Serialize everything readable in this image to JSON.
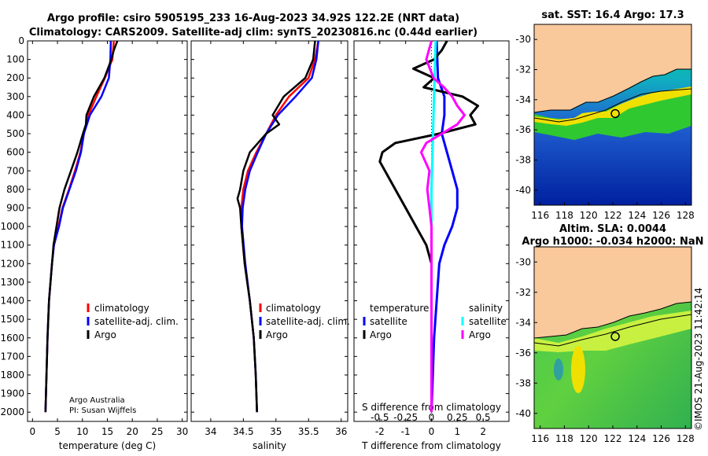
{
  "header": {
    "title_line1": "Argo profile: csiro 5905195_233 16-Aug-2023 34.92S 122.2E (NRT data)",
    "title_line2": "Climatology: CARS2009. Satellite-adj clim: synTS_20230816.nc (0.44d earlier)"
  },
  "credits": {
    "line1": "Argo Australia",
    "line2": "PI: Susan Wijffels"
  },
  "copyright": "©IMOS 21-Aug-2023 11:42:14",
  "colors": {
    "climatology": "#ff0000",
    "satellite": "#0000ff",
    "argo": "#000000",
    "sal_argo": "#ff00ff",
    "sal_sat": "#00ffff",
    "land": "#f9c89b"
  },
  "chart_data": [
    {
      "type": "line",
      "name": "temperature",
      "xlabel": "temperature (deg C)",
      "xlim": [
        -1,
        31
      ],
      "ylim": [
        2050,
        0
      ],
      "xticks": [
        0,
        5,
        10,
        15,
        20,
        25,
        30
      ],
      "yticks": [
        0,
        100,
        200,
        300,
        400,
        500,
        600,
        700,
        800,
        900,
        1000,
        1100,
        1200,
        1300,
        1400,
        1500,
        1600,
        1700,
        1800,
        1900,
        2000
      ],
      "legend": [
        "climatology",
        "satellite-adj. clim.",
        "Argo"
      ],
      "series": [
        {
          "name": "climatology",
          "depth": [
            0,
            100,
            200,
            300,
            400,
            500,
            600,
            700,
            800,
            900,
            1000,
            1100,
            1200,
            1400,
            1600,
            1800,
            2000
          ],
          "values": [
            16.3,
            16.0,
            14.5,
            12.8,
            11.2,
            10.3,
            9.6,
            8.5,
            7.3,
            6.0,
            5.2,
            4.3,
            3.9,
            3.3,
            3.0,
            2.8,
            2.6
          ]
        },
        {
          "name": "satellite-adj. clim.",
          "depth": [
            0,
            100,
            200,
            300,
            400,
            500,
            600,
            700,
            800,
            900,
            1000,
            1100,
            1200,
            1400,
            1600,
            1800,
            2000
          ],
          "values": [
            15.7,
            15.6,
            15.3,
            13.8,
            11.5,
            10.3,
            9.7,
            8.7,
            7.4,
            6.1,
            5.3,
            4.3,
            3.9,
            3.3,
            3.0,
            2.8,
            2.6
          ]
        },
        {
          "name": "Argo",
          "depth": [
            0,
            50,
            100,
            200,
            300,
            400,
            450,
            500,
            600,
            700,
            800,
            900,
            1000,
            1100,
            1200,
            1400,
            1600,
            1800,
            2000
          ],
          "values": [
            17.0,
            16.3,
            15.8,
            14.4,
            12.3,
            10.8,
            10.7,
            10.1,
            9.0,
            7.7,
            6.4,
            5.4,
            4.8,
            4.2,
            3.9,
            3.3,
            3.0,
            2.8,
            2.6
          ]
        }
      ]
    },
    {
      "type": "line",
      "name": "salinity",
      "xlabel": "salinity",
      "xlim": [
        33.7,
        36.1
      ],
      "ylim": [
        2050,
        0
      ],
      "xticks": [
        34,
        34.5,
        35,
        35.5,
        36
      ],
      "legend": [
        "climatology",
        "satellite-adj. clim.",
        "Argo"
      ],
      "series": [
        {
          "name": "climatology",
          "depth": [
            0,
            100,
            200,
            300,
            400,
            500,
            600,
            700,
            800,
            900,
            1000,
            1200,
            1400,
            1600,
            1800,
            2000
          ],
          "values": [
            35.65,
            35.6,
            35.5,
            35.2,
            35.0,
            34.85,
            34.7,
            34.57,
            34.5,
            34.47,
            34.47,
            34.52,
            34.6,
            34.66,
            34.69,
            34.71
          ]
        },
        {
          "name": "satellite-adj. clim.",
          "depth": [
            0,
            100,
            200,
            300,
            400,
            500,
            600,
            700,
            800,
            900,
            1000,
            1200,
            1400,
            1600,
            1800,
            2000
          ],
          "values": [
            35.65,
            35.62,
            35.55,
            35.3,
            35.03,
            34.85,
            34.72,
            34.6,
            34.53,
            34.49,
            34.48,
            34.53,
            34.6,
            34.66,
            34.69,
            34.71
          ]
        },
        {
          "name": "Argo",
          "depth": [
            0,
            100,
            200,
            300,
            400,
            450,
            500,
            600,
            700,
            800,
            850,
            900,
            1000,
            1200,
            1400,
            1600,
            1800,
            2000
          ],
          "values": [
            35.6,
            35.57,
            35.45,
            35.12,
            34.95,
            35.05,
            34.85,
            34.6,
            34.5,
            34.45,
            34.41,
            34.45,
            34.47,
            34.52,
            34.6,
            34.66,
            34.69,
            34.71
          ]
        }
      ]
    },
    {
      "type": "line",
      "name": "difference",
      "xlabel": "T difference from climatology",
      "x2label": "S difference from climatology",
      "xlim": [
        -3,
        3
      ],
      "ylim": [
        2050,
        0
      ],
      "xticks": [
        -2,
        -1,
        0,
        1,
        2
      ],
      "x2ticks_labels": [
        "-0.5",
        "-0.25",
        "0",
        "0.25",
        "0.5"
      ],
      "x2ticks": [
        -0.5,
        -0.25,
        0,
        0.25,
        0.5
      ],
      "legend_temp_title": "temperature",
      "legend_sal_title": "salinity",
      "legend": [
        "satellite",
        "Argo",
        "satellite",
        "Argo"
      ],
      "series": [
        {
          "name": "temperature satellite",
          "depth": [
            0,
            200,
            300,
            400,
            500,
            600,
            700,
            800,
            900,
            1000,
            1100,
            1200,
            1600,
            2000
          ],
          "values": [
            0.2,
            0.25,
            0.5,
            0.5,
            0.4,
            0.6,
            0.8,
            1.0,
            1.0,
            0.8,
            0.5,
            0.3,
            0.1,
            0.0
          ]
        },
        {
          "name": "temperature Argo",
          "depth": [
            0,
            50,
            100,
            150,
            200,
            250,
            300,
            350,
            400,
            450,
            500,
            550,
            600,
            650,
            700,
            800,
            900,
            1000,
            1100,
            1200,
            1400,
            1600,
            2000
          ],
          "values": [
            0.6,
            0.4,
            0.1,
            -0.7,
            0.1,
            -0.3,
            1.2,
            1.8,
            1.5,
            1.7,
            0.3,
            -1.4,
            -1.9,
            -2.0,
            -1.8,
            -1.4,
            -1.0,
            -0.6,
            -0.2,
            0.0,
            0.0,
            0.0,
            0.0
          ]
        },
        {
          "name": "salinity satellite",
          "depth": [
            0,
            200,
            400,
            600,
            800,
            1000,
            1200,
            1600,
            2000
          ],
          "values": [
            0.04,
            0.03,
            0.02,
            0.01,
            0.0,
            0.0,
            0.0,
            0.0,
            0.0
          ]
        },
        {
          "name": "salinity Argo",
          "depth": [
            0,
            100,
            200,
            250,
            300,
            350,
            400,
            450,
            500,
            550,
            600,
            700,
            800,
            900,
            1000,
            1200,
            1400,
            1600,
            2000
          ],
          "values": [
            0.0,
            -0.05,
            0.02,
            0.12,
            0.2,
            0.25,
            0.32,
            0.25,
            0.1,
            -0.05,
            -0.1,
            -0.02,
            -0.04,
            -0.02,
            0.0,
            0.0,
            0.0,
            0.0,
            0.0
          ]
        }
      ]
    },
    {
      "type": "heatmap",
      "name": "sst_map",
      "title": "sat. SST: 16.4 Argo: 17.3",
      "xticks": [
        116,
        118,
        120,
        122,
        124,
        126,
        128
      ],
      "yticks": [
        -30,
        -32,
        -34,
        -36,
        -38,
        -40
      ],
      "xlim": [
        115.5,
        128.5
      ],
      "ylim": [
        -41,
        -29
      ],
      "marker": {
        "lon": 122.2,
        "lat": -34.92
      }
    },
    {
      "type": "heatmap",
      "name": "sla_map",
      "title": "Altim. SLA: 0.0044",
      "subtitle": "Argo h1000: -0.034 h2000: NaN",
      "xticks": [
        116,
        118,
        120,
        122,
        124,
        126,
        128
      ],
      "yticks": [
        -30,
        -32,
        -34,
        -36,
        -38,
        -40
      ],
      "xlim": [
        115.5,
        128.5
      ],
      "ylim": [
        -41,
        -29
      ],
      "marker": {
        "lon": 122.2,
        "lat": -34.92
      }
    }
  ]
}
